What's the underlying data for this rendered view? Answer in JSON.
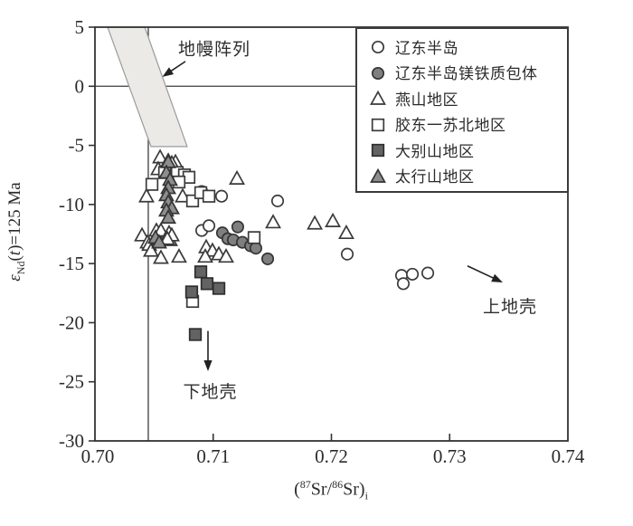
{
  "figure": {
    "background": "#ffffff",
    "axis_color": "#333333",
    "text_color": "#2b2b2b"
  },
  "chart_data": {
    "type": "scatter",
    "title": "",
    "xlabel_parts": {
      "p1": "(",
      "sup1": "87",
      "p2": "Sr/",
      "sup2": "86",
      "p3": "Sr)",
      "sub1": "i"
    },
    "ylabel_parts": {
      "epsilon": "ε",
      "sub": "Nd",
      "open": "(",
      "t": "t",
      "rest": ")=125 Ma"
    },
    "x_axis": {
      "min": 0.7,
      "max": 0.74,
      "tick_values": [
        0.7,
        0.71,
        0.72,
        0.73,
        0.74
      ],
      "tick_labels": [
        "0.70",
        "0.71",
        "0.72",
        "0.73",
        "0.74"
      ]
    },
    "y_axis": {
      "min": -30,
      "max": 5,
      "tick_values": [
        5,
        0,
        -5,
        -10,
        -15,
        -20,
        -25,
        -30
      ],
      "tick_labels": [
        "5",
        "0",
        "-5",
        "-10",
        "-15",
        "-20",
        "-25",
        "-30"
      ]
    },
    "reference_lines": [
      {
        "id": "epsilon-zero-line",
        "orientation": "horizontal",
        "value": 0
      },
      {
        "id": "sr-0704-line",
        "orientation": "vertical",
        "value": 0.70451
      }
    ],
    "mantle_band": {
      "fill": "#eceae6",
      "stroke": "#9b9b9b",
      "polygon": [
        [
          0.70107,
          5
        ],
        [
          0.70421,
          5
        ],
        [
          0.7078,
          -5.1
        ],
        [
          0.70474,
          -5.1
        ]
      ]
    },
    "series": [
      {
        "name": "liaodong-peninsula",
        "label": "辽东半岛",
        "marker": "circle",
        "filled": false,
        "fill": "#ffffff",
        "stroke": "#3a3a3a",
        "points": [
          [
            0.70903,
            -8.9
          ],
          [
            0.71071,
            -9.3
          ],
          [
            0.71545,
            -9.7
          ],
          [
            0.72134,
            -14.2
          ],
          [
            0.72593,
            -16.0
          ],
          [
            0.72608,
            -16.7
          ],
          [
            0.72685,
            -15.9
          ],
          [
            0.72815,
            -15.8
          ],
          [
            0.70903,
            -12.2
          ],
          [
            0.70964,
            -11.8
          ]
        ]
      },
      {
        "name": "liaodong-mafic-enclaves",
        "label": "辽东半岛镁铁质包体",
        "marker": "circle",
        "filled": true,
        "fill": "#7f7f7f",
        "stroke": "#343434",
        "points": [
          [
            0.71078,
            -12.4
          ],
          [
            0.71124,
            -12.9
          ],
          [
            0.7117,
            -13.0
          ],
          [
            0.71208,
            -11.9
          ],
          [
            0.71247,
            -13.2
          ],
          [
            0.71316,
            -13.5
          ],
          [
            0.71361,
            -13.7
          ],
          [
            0.71461,
            -14.6
          ]
        ]
      },
      {
        "name": "yanshan-area",
        "label": "燕山地区",
        "marker": "triangle",
        "filled": false,
        "fill": "#ffffff",
        "stroke": "#3a3a3a",
        "points": [
          [
            0.70551,
            -6.0
          ],
          [
            0.7062,
            -6.3
          ],
          [
            0.70681,
            -6.4
          ],
          [
            0.70535,
            -7.0
          ],
          [
            0.7065,
            -6.5
          ],
          [
            0.70436,
            -9.3
          ],
          [
            0.70742,
            -9.3
          ],
          [
            0.71201,
            -7.8
          ],
          [
            0.70398,
            -12.6
          ],
          [
            0.70444,
            -13.2
          ],
          [
            0.70459,
            -13.4
          ],
          [
            0.7052,
            -12.2
          ],
          [
            0.70535,
            -12.9
          ],
          [
            0.70558,
            -12.2
          ],
          [
            0.70627,
            -12.4
          ],
          [
            0.70635,
            -13.0
          ],
          [
            0.7065,
            -12.6
          ],
          [
            0.70612,
            -12.9
          ],
          [
            0.70558,
            -14.5
          ],
          [
            0.70711,
            -14.4
          ],
          [
            0.70474,
            -13.9
          ],
          [
            0.70941,
            -13.6
          ],
          [
            0.70994,
            -13.9
          ],
          [
            0.71048,
            -14.2
          ],
          [
            0.71109,
            -14.4
          ],
          [
            0.70933,
            -14.4
          ],
          [
            0.71507,
            -11.5
          ],
          [
            0.71859,
            -11.6
          ],
          [
            0.72012,
            -11.4
          ],
          [
            0.72126,
            -12.4
          ]
        ]
      },
      {
        "name": "jiaodong-subei-area",
        "label": "胶东一苏北地区",
        "marker": "square",
        "filled": false,
        "fill": "#ffffff",
        "stroke": "#3a3a3a",
        "points": [
          [
            0.70482,
            -8.3
          ],
          [
            0.70589,
            -7.3
          ],
          [
            0.70696,
            -7.3
          ],
          [
            0.70757,
            -7.5
          ],
          [
            0.70795,
            -7.7
          ],
          [
            0.70711,
            -8.1
          ],
          [
            0.70826,
            -9.7
          ],
          [
            0.70895,
            -9.0
          ],
          [
            0.70964,
            -9.3
          ],
          [
            0.71346,
            -12.8
          ],
          [
            0.70826,
            -18.2
          ]
        ]
      },
      {
        "name": "dabieshan-area",
        "label": "大别山地区",
        "marker": "square",
        "filled": true,
        "fill": "#636363",
        "stroke": "#2e2e2e",
        "points": [
          [
            0.70895,
            -15.7
          ],
          [
            0.70948,
            -16.7
          ],
          [
            0.71048,
            -17.1
          ],
          [
            0.70818,
            -17.4
          ],
          [
            0.70849,
            -21.0
          ]
        ]
      },
      {
        "name": "taihangshan-area",
        "label": "太行山地区",
        "marker": "triangle",
        "filled": true,
        "fill": "#8d8d8d",
        "stroke": "#343434",
        "points": [
          [
            0.7062,
            -6.4
          ],
          [
            0.70604,
            -7.3
          ],
          [
            0.70635,
            -7.9
          ],
          [
            0.7062,
            -8.6
          ],
          [
            0.70604,
            -9.2
          ],
          [
            0.7062,
            -9.8
          ],
          [
            0.7065,
            -10.3
          ],
          [
            0.70604,
            -10.5
          ],
          [
            0.7062,
            -11.1
          ],
          [
            0.70512,
            -12.8
          ],
          [
            0.70543,
            -13.2
          ]
        ]
      }
    ],
    "annotations": [
      {
        "id": "mantle-array",
        "text": "地幔阵列",
        "x": 0.7101,
        "y": 3.2,
        "arrow": {
          "x1": 0.70765,
          "y1": 2.1,
          "x2": 0.7057,
          "y2": 0.8
        }
      },
      {
        "id": "lower-crust",
        "text": "下地壳",
        "x": 0.70975,
        "y": -25.8,
        "arrow": {
          "x1": 0.70956,
          "y1": -20.7,
          "x2": 0.70956,
          "y2": -24.1
        }
      },
      {
        "id": "upper-crust",
        "text": "上地壳",
        "x": 0.73511,
        "y": -18.6,
        "arrow": {
          "x1": 0.73151,
          "y1": -15.2,
          "x2": 0.73449,
          "y2": -16.6
        }
      }
    ],
    "legend": {
      "position": "top-right"
    }
  }
}
